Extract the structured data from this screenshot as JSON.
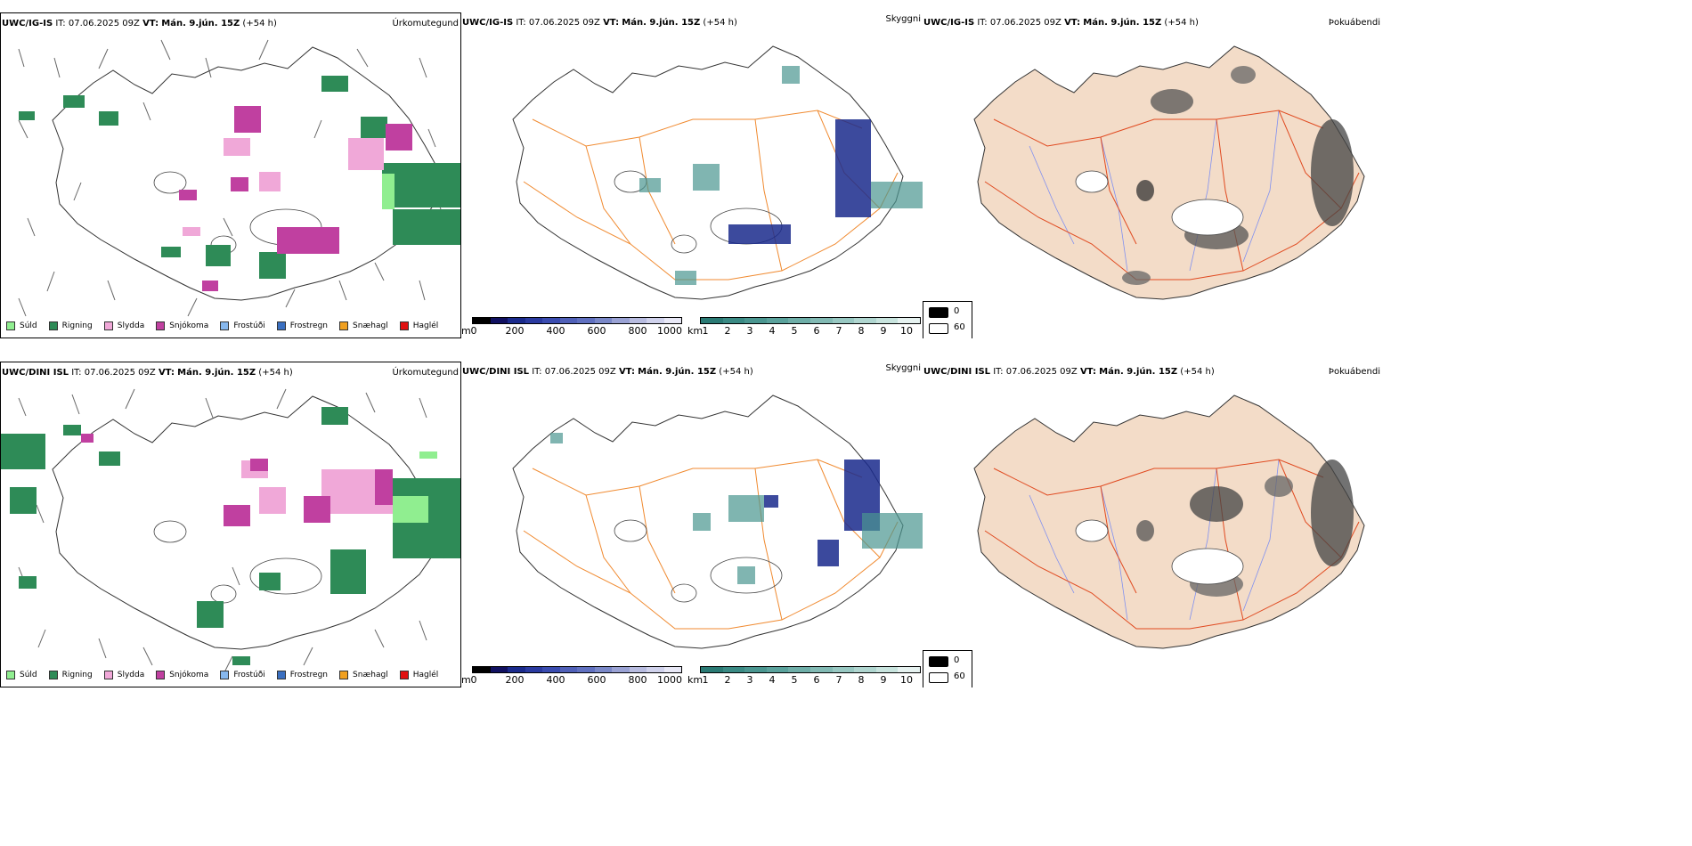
{
  "rows": [
    {
      "model": "UWC/IG-IS",
      "it_label": "IT:",
      "it_value": "07.06.2025 09Z",
      "vt_label": "VT:",
      "vt_value": "Mán. 9.jún. 15Z",
      "lead": "(+54 h)",
      "panels": {
        "precip_type": "Úrkomutegund",
        "visibility": "Skyggni",
        "fog": "Þokuábendi"
      }
    },
    {
      "model": "UWC/DINI ISL",
      "it_label": "IT:",
      "it_value": "07.06.2025 09Z",
      "vt_label": "VT:",
      "vt_value": "Mán. 9.jún. 15Z",
      "lead": "(+54 h)",
      "panels": {
        "precip_type": "Úrkomutegund",
        "visibility": "Skyggni",
        "fog": "Þokuábendi"
      }
    }
  ],
  "precip_legend": [
    {
      "label": "Súld",
      "color": "#90ee90"
    },
    {
      "label": "Rigning",
      "color": "#2e8b57"
    },
    {
      "label": "Slydda",
      "color": "#f0a8d8"
    },
    {
      "label": "Snjókoma",
      "color": "#c040a0"
    },
    {
      "label": "Frostúði",
      "color": "#87b8ee"
    },
    {
      "label": "Frostregn",
      "color": "#3a6fc0"
    },
    {
      "label": "Snæhagl",
      "color": "#f0a020"
    },
    {
      "label": "Haglél",
      "color": "#e01010"
    }
  ],
  "cloud_base_bar": {
    "unit": "m",
    "ticks": [
      "0",
      "200",
      "400",
      "600",
      "800",
      "1000"
    ],
    "colors": [
      "#000000",
      "#101060",
      "#1a2a8c",
      "#2a3aa0",
      "#3a4cb0",
      "#5060b8",
      "#6070c0",
      "#7a88c8",
      "#9aa2d4",
      "#b8bce0",
      "#d0d2ec",
      "#e8e8f6"
    ]
  },
  "visibility_bar": {
    "unit": "km",
    "ticks": [
      "1",
      "2",
      "3",
      "4",
      "5",
      "6",
      "7",
      "8",
      "9",
      "10"
    ],
    "colors": [
      "#2a7a74",
      "#3a8a84",
      "#4a9690",
      "#5aa29c",
      "#6eaea8",
      "#82bab4",
      "#98c8c2",
      "#b0d6d0",
      "#c8e4de",
      "#e6f2f0"
    ]
  },
  "fog_key": {
    "high": "0",
    "low": "60"
  },
  "colors": {
    "land": "#f3dcc8",
    "road_orange": "#f08a30",
    "road_red": "#e04a20",
    "river": "#8090f0",
    "rain": "#2e8b57",
    "sleet": "#f0a8d8",
    "snow": "#c040a0",
    "cloud_base": "#1a2a8c",
    "visibility": "#4a9690"
  }
}
